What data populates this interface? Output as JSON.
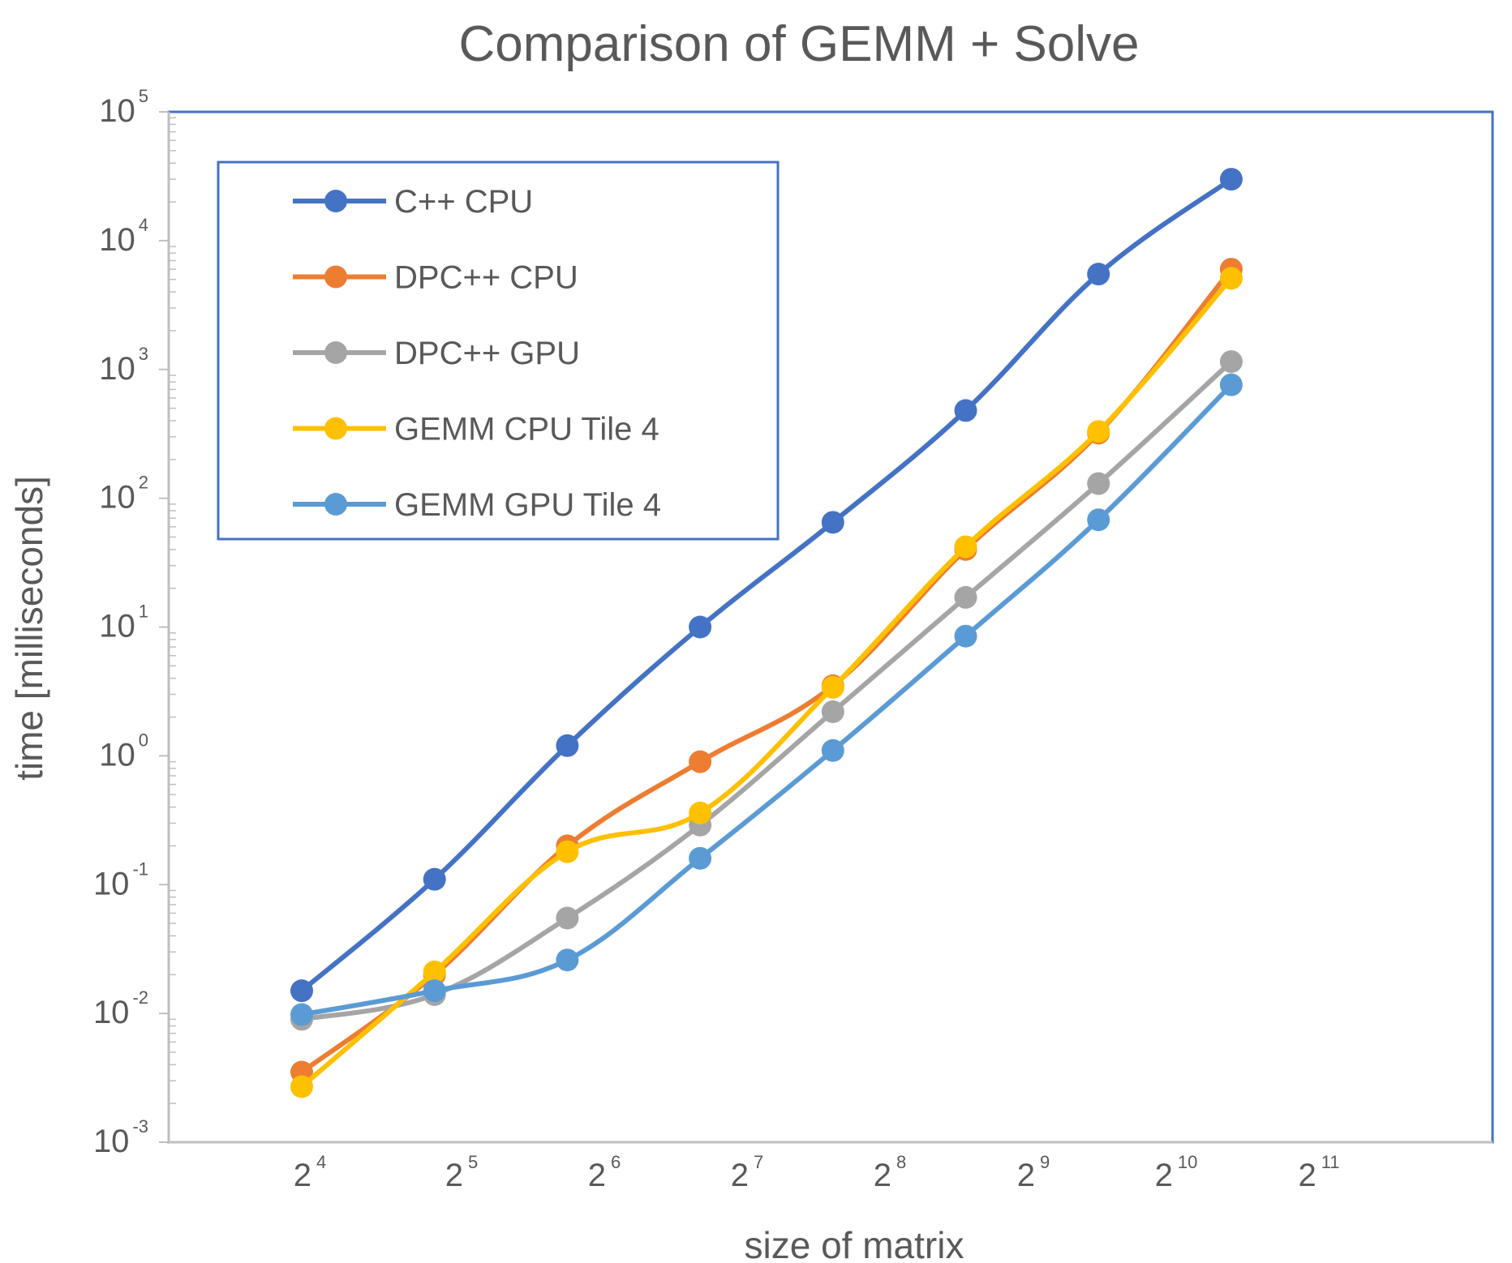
{
  "chart_data": {
    "type": "line",
    "title": "Comparison of GEMM + Solve",
    "xlabel": "size of matrix",
    "ylabel": "time [milliseconds]",
    "x_scale": "log2",
    "y_scale": "log10",
    "x": [
      16,
      32,
      64,
      128,
      256,
      512,
      1024,
      2048
    ],
    "xlim": [
      16,
      2048
    ],
    "ylim": [
      0.001,
      100000
    ],
    "x_ticks": [
      {
        "base": "2",
        "exp": "4"
      },
      {
        "base": "2",
        "exp": "5"
      },
      {
        "base": "2",
        "exp": "6"
      },
      {
        "base": "2",
        "exp": "7"
      },
      {
        "base": "2",
        "exp": "8"
      },
      {
        "base": "2",
        "exp": "9"
      },
      {
        "base": "2",
        "exp": "10"
      },
      {
        "base": "2",
        "exp": "11"
      }
    ],
    "y_ticks": [
      {
        "base": "10",
        "exp": "-3"
      },
      {
        "base": "10",
        "exp": "-2"
      },
      {
        "base": "10",
        "exp": "-1"
      },
      {
        "base": "10",
        "exp": "0"
      },
      {
        "base": "10",
        "exp": "1"
      },
      {
        "base": "10",
        "exp": "2"
      },
      {
        "base": "10",
        "exp": "3"
      },
      {
        "base": "10",
        "exp": "4"
      },
      {
        "base": "10",
        "exp": "5"
      }
    ],
    "legend_position": "top-left",
    "grid": false,
    "series": [
      {
        "name": "C++ CPU",
        "color": "#4472C4",
        "values": [
          0.015,
          0.11,
          1.2,
          10,
          65,
          480,
          5500,
          30000
        ]
      },
      {
        "name": "DPC++ CPU",
        "color": "#ED7D31",
        "values": [
          0.0035,
          0.02,
          0.2,
          0.9,
          3.5,
          40,
          320,
          6000
        ]
      },
      {
        "name": "DPC++ GPU",
        "color": "#A5A5A5",
        "values": [
          0.009,
          0.014,
          0.055,
          0.29,
          2.2,
          17,
          130,
          1150
        ]
      },
      {
        "name": "GEMM CPU  Tile 4",
        "color": "#FFC000",
        "values": [
          0.0027,
          0.021,
          0.18,
          0.36,
          3.4,
          42,
          330,
          5100
        ]
      },
      {
        "name": "GEMM GPU  Tile 4",
        "color": "#5B9BD5",
        "values": [
          0.0098,
          0.015,
          0.026,
          0.16,
          1.1,
          8.5,
          68,
          760
        ]
      }
    ]
  }
}
